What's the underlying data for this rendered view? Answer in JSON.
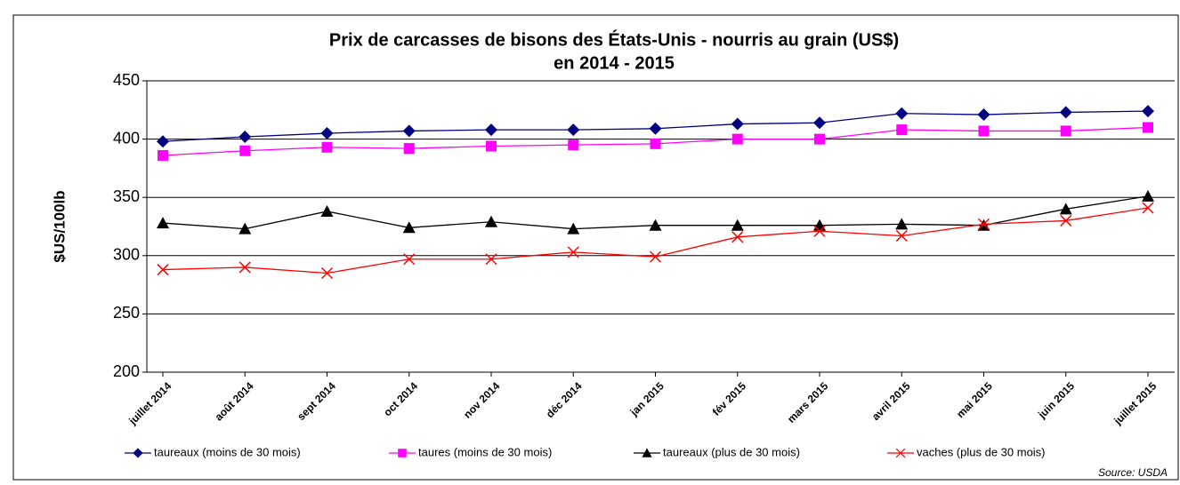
{
  "chart_data": {
    "type": "line",
    "title": "Prix de carcasses de bisons des États-Unis - nourris au grain (US$)",
    "subtitle": "en 2014 - 2015",
    "y_label": "$US/100lb",
    "source": "Source: USDA",
    "categories": [
      "juillet 2014",
      "août 2014",
      "sept 2014",
      "oct 2014",
      "nov 2014",
      "déc 2014",
      "jan 2015",
      "fév 2015",
      "mars 2015",
      "avril 2015",
      "mai 2015",
      "juin 2015",
      "juillet 2015"
    ],
    "series": [
      {
        "name": "taureaux (moins de 30 mois)",
        "color": "#000080",
        "marker": "diamond",
        "values": [
          398,
          402,
          405,
          407,
          408,
          408,
          409,
          413,
          414,
          422,
          421,
          423,
          424
        ]
      },
      {
        "name": "taures (moins de 30 mois)",
        "color": "#ff00ff",
        "marker": "square",
        "values": [
          386,
          390,
          393,
          392,
          394,
          395,
          396,
          400,
          400,
          408,
          407,
          407,
          410
        ]
      },
      {
        "name": "taureaux (plus de 30 mois)",
        "color": "#000000",
        "marker": "triangle",
        "values": [
          328,
          323,
          338,
          324,
          329,
          323,
          326,
          326,
          326,
          327,
          326,
          340,
          351
        ]
      },
      {
        "name": "vaches (plus de 30 mois)",
        "color": "#ff0000",
        "marker": "x",
        "values": [
          288,
          290,
          285,
          297,
          297,
          303,
          299,
          316,
          321,
          317,
          327,
          330,
          341
        ]
      }
    ],
    "ylim": [
      200,
      450
    ],
    "yticks": [
      200,
      250,
      300,
      350,
      400,
      450
    ],
    "grid": true,
    "legend": "bottom"
  }
}
